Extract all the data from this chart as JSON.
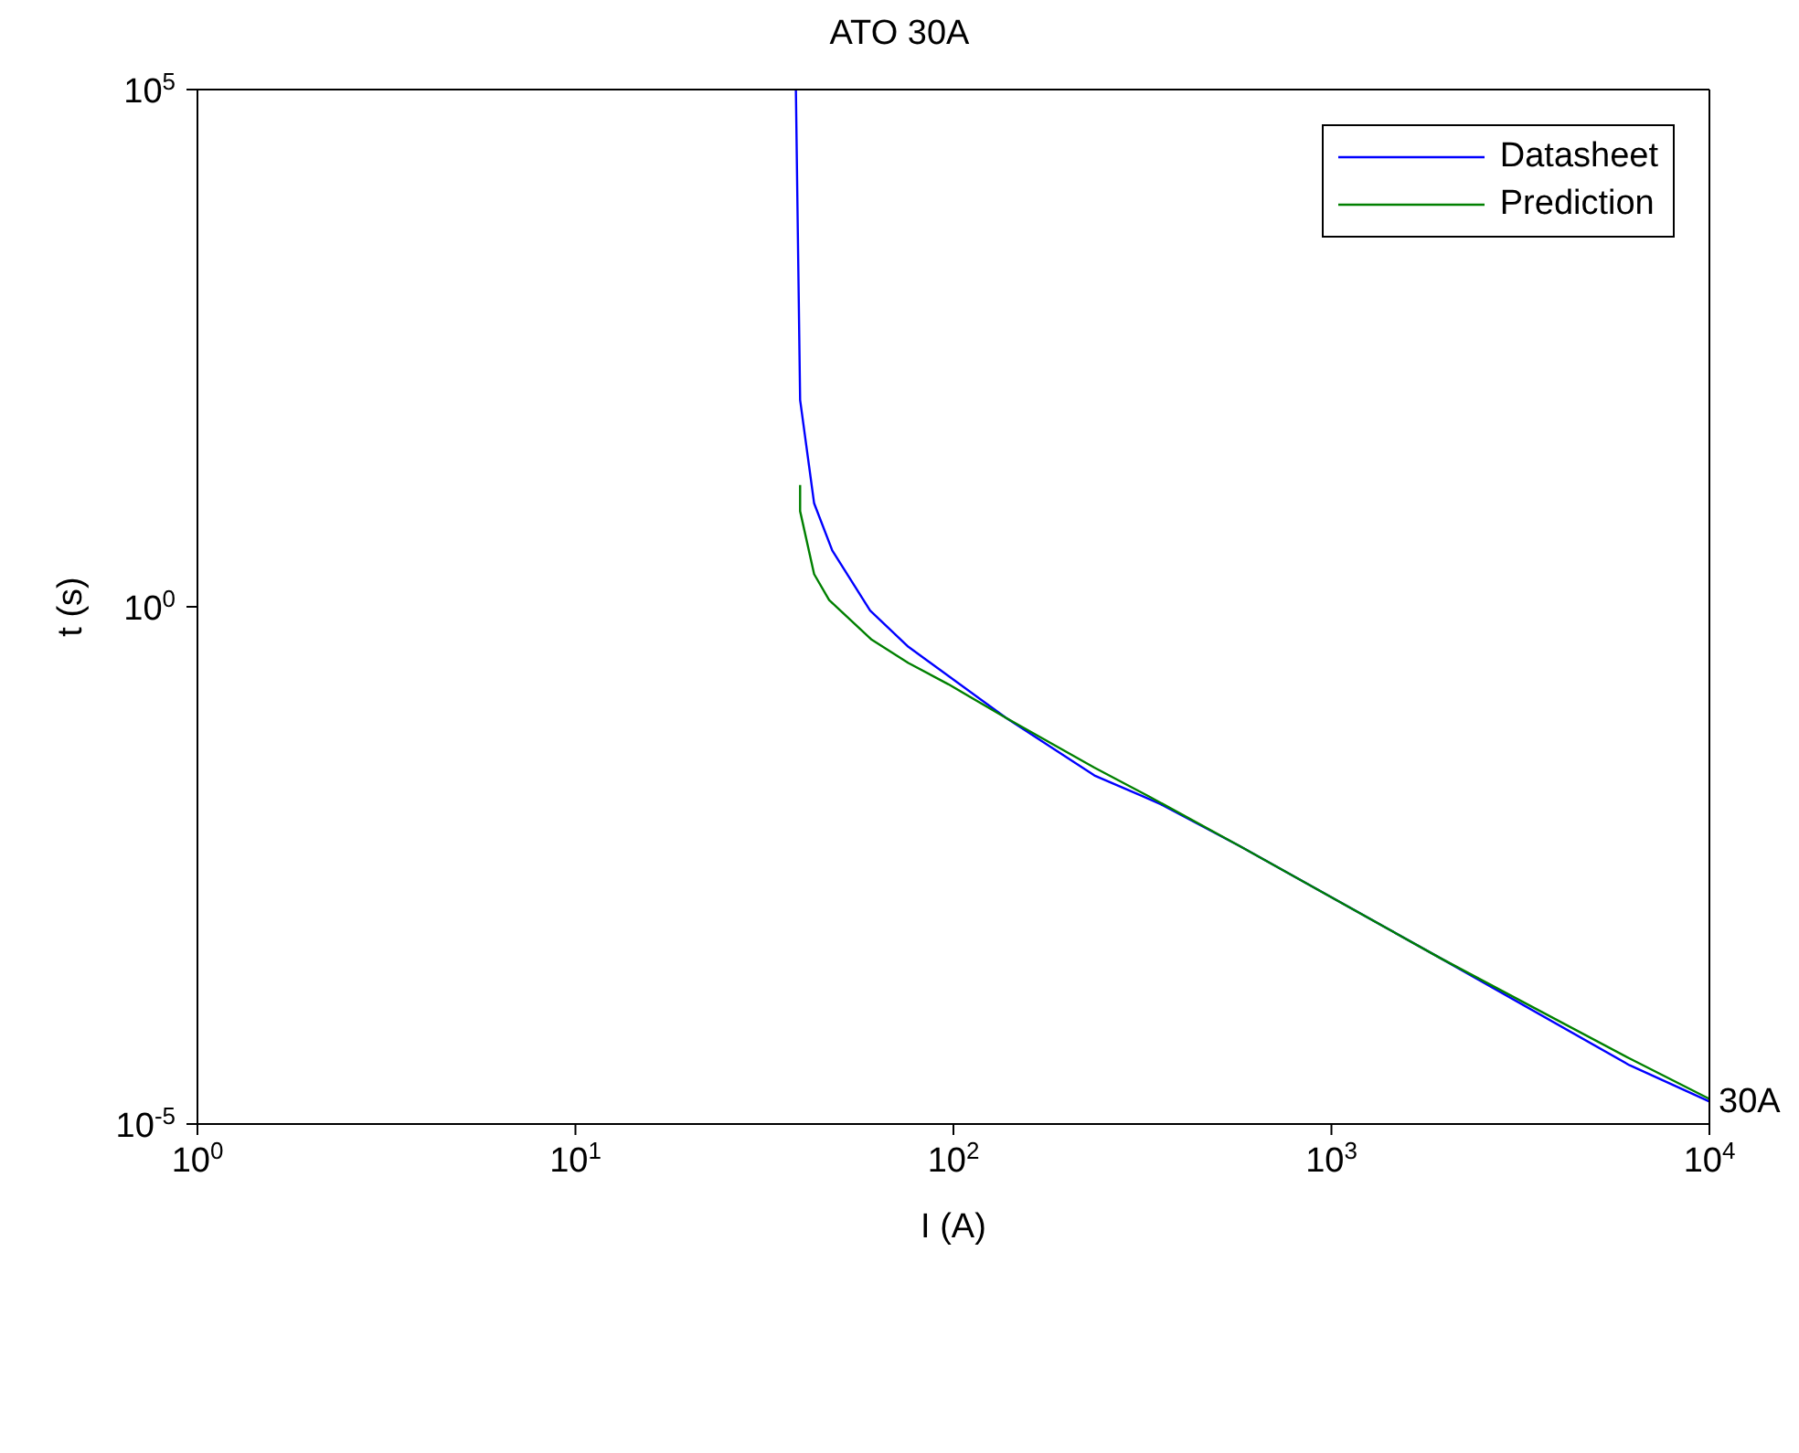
{
  "chart_data": {
    "type": "line",
    "title": "ATO 30A",
    "xlabel": "I (A)",
    "ylabel": "t (s)",
    "log": "xy",
    "grid": false,
    "legend": "top right",
    "marker": "none",
    "line_style": "solid",
    "xlim": [
      1,
      10000
    ],
    "xticks": [
      {
        "value": 1,
        "label": "10$^{0}$"
      },
      {
        "value": 10,
        "label": "10$^{1}$"
      },
      {
        "value": 100,
        "label": "10$^{2}$"
      },
      {
        "value": 1000,
        "label": "10$^{3}$"
      },
      {
        "value": 10000,
        "label": "10$^{4}$"
      }
    ],
    "ylim": [
      1e-05,
      100000
    ],
    "yticks": [
      {
        "value": 1e-05,
        "label": "10$^{-5}$"
      },
      {
        "value": 1,
        "label": "10$^{0}$"
      },
      {
        "value": 100000,
        "label": "10$^{5}$"
      }
    ],
    "annotations": [
      {
        "text": "30A",
        "x": 10000,
        "y": 1.7e-05
      }
    ],
    "series": [
      {
        "name": "Datasheet",
        "color": "#0000ff",
        "x": [
          38.3,
          39.3,
          42.8,
          47.8,
          60.2,
          76,
          138,
          236,
          317,
          354,
          573,
          1950,
          6150,
          10000
        ],
        "values": [
          100000,
          100,
          10,
          3.5,
          0.92,
          0.41,
          0.084,
          0.0234,
          0.0147,
          0.0123,
          0.00485,
          0.000398,
          3.7e-05,
          1.65e-05
        ]
      },
      {
        "name": "Prediction",
        "color": "#008000",
        "x": [
          39.3,
          39.3,
          42.8,
          46.9,
          60.8,
          76,
          96.8,
          138,
          236,
          329,
          573,
          1950,
          6150,
          10000
        ],
        "values": [
          15,
          8.4,
          2.07,
          1.16,
          0.48,
          0.286,
          0.179,
          0.084,
          0.0279,
          0.0147,
          0.00485,
          0.000398,
          4.3e-05,
          1.75e-05
        ]
      }
    ]
  }
}
